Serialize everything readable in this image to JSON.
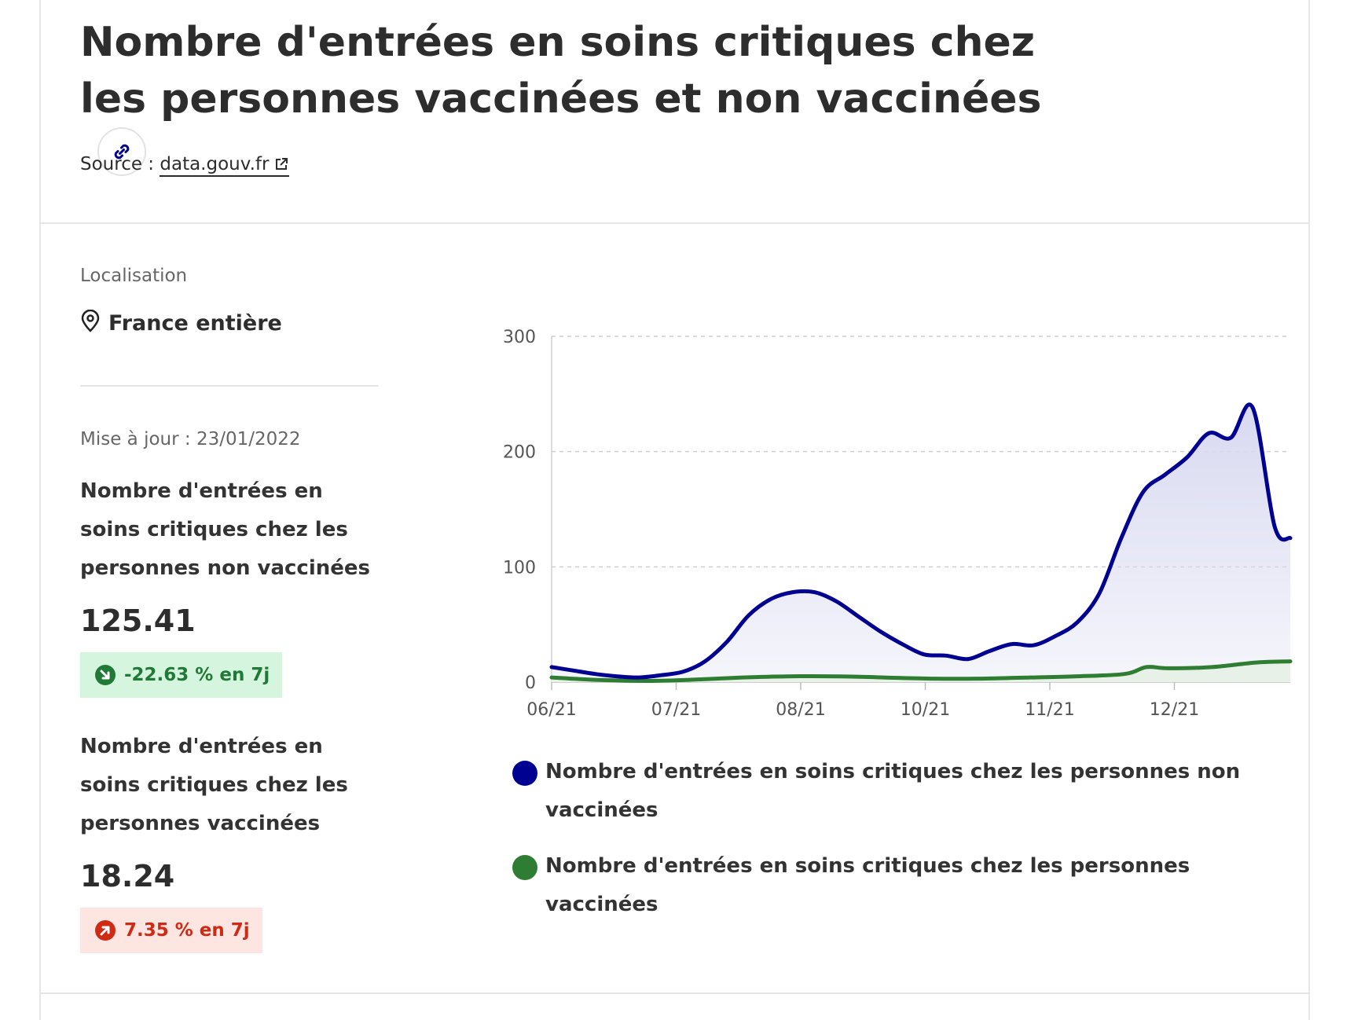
{
  "header": {
    "title": "Nombre d'entrées en soins critiques chez les personnes vaccinées et non vaccinées",
    "source_prefix": "Source : ",
    "source_link": "data.gouv.fr"
  },
  "location": {
    "label": "Localisation",
    "value": "France entière"
  },
  "update": "Mise à jour : 23/01/2022",
  "kpis": [
    {
      "title": "Nombre d'entrées en soins critiques chez les personnes non vaccinées",
      "value": "125.41",
      "change": "-22.63 % en 7j",
      "trend": "down",
      "color": "#1e7a35"
    },
    {
      "title": "Nombre d'entrées en soins critiques chez les personnes vaccinées",
      "value": "18.24",
      "change": "7.35 % en 7j",
      "trend": "up",
      "color": "#ce2a14"
    }
  ],
  "colors": {
    "unvaccinated": "#000091",
    "vaccinated": "#2e7d32",
    "area_fill": "#d8d9f0"
  },
  "chart_data": {
    "type": "area",
    "x_ticks": [
      "06/21",
      "07/21",
      "08/21",
      "10/21",
      "11/21",
      "12/21"
    ],
    "y_ticks": [
      0,
      100,
      200,
      300
    ],
    "ylim": [
      0,
      300
    ],
    "grid": "horizontal dashed",
    "legend_position": "bottom",
    "series": [
      {
        "name": "Nombre d'entrées en soins critiques chez les personnes non vaccinées",
        "color": "#000091",
        "points": [
          [
            "2021-06-01",
            13
          ],
          [
            "2021-06-08",
            10
          ],
          [
            "2021-06-15",
            7
          ],
          [
            "2021-06-22",
            5
          ],
          [
            "2021-06-29",
            4
          ],
          [
            "2021-07-06",
            6
          ],
          [
            "2021-07-13",
            9
          ],
          [
            "2021-07-20",
            18
          ],
          [
            "2021-07-27",
            35
          ],
          [
            "2021-08-03",
            58
          ],
          [
            "2021-08-10",
            72
          ],
          [
            "2021-08-17",
            78
          ],
          [
            "2021-08-24",
            78
          ],
          [
            "2021-08-31",
            70
          ],
          [
            "2021-09-07",
            57
          ],
          [
            "2021-09-14",
            44
          ],
          [
            "2021-09-21",
            33
          ],
          [
            "2021-09-28",
            24
          ],
          [
            "2021-10-05",
            23
          ],
          [
            "2021-10-12",
            20
          ],
          [
            "2021-10-19",
            27
          ],
          [
            "2021-10-26",
            33
          ],
          [
            "2021-11-02",
            32
          ],
          [
            "2021-11-09",
            40
          ],
          [
            "2021-11-16",
            52
          ],
          [
            "2021-11-23",
            77
          ],
          [
            "2021-11-30",
            125
          ],
          [
            "2021-12-07",
            165
          ],
          [
            "2021-12-14",
            180
          ],
          [
            "2021-12-21",
            195
          ],
          [
            "2021-12-28",
            216
          ],
          [
            "2022-01-04",
            212
          ],
          [
            "2022-01-11",
            238
          ],
          [
            "2022-01-18",
            135
          ],
          [
            "2022-01-23",
            125
          ]
        ]
      },
      {
        "name": "Nombre d'entrées en soins critiques chez les personnes vaccinées",
        "color": "#2e7d32",
        "points": [
          [
            "2021-06-01",
            4
          ],
          [
            "2021-06-15",
            2
          ],
          [
            "2021-07-01",
            1
          ],
          [
            "2021-07-15",
            2
          ],
          [
            "2021-08-01",
            4
          ],
          [
            "2021-08-15",
            5
          ],
          [
            "2021-09-01",
            5
          ],
          [
            "2021-09-15",
            4
          ],
          [
            "2021-10-01",
            3
          ],
          [
            "2021-10-15",
            3
          ],
          [
            "2021-11-01",
            4
          ],
          [
            "2021-11-15",
            5
          ],
          [
            "2021-12-01",
            7
          ],
          [
            "2021-12-08",
            13
          ],
          [
            "2021-12-15",
            12
          ],
          [
            "2021-12-29",
            13
          ],
          [
            "2022-01-12",
            17
          ],
          [
            "2022-01-23",
            18
          ]
        ]
      }
    ]
  }
}
